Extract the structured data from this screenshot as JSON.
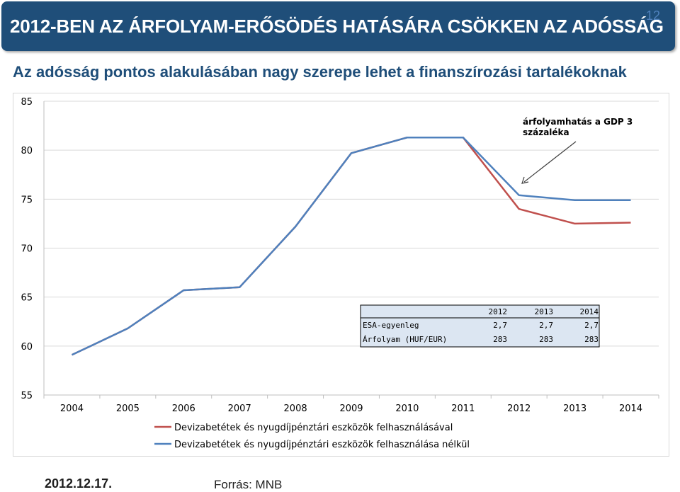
{
  "header": {
    "title": "2012-BEN AZ ÁRFOLYAM-ERŐSÖDÉS HATÁSÁRA CSÖKKEN AZ ADÓSSÁG",
    "page_number": "12"
  },
  "subtitle": "Az adósság pontos alakulásában nagy szerepe lehet a finanszírozási tartalékoknak",
  "footer": {
    "date": "2012.12.17.",
    "source": "Forrás: MNB"
  },
  "chart_data": {
    "type": "line",
    "categories": [
      "2004",
      "2005",
      "2006",
      "2007",
      "2008",
      "2009",
      "2010",
      "2011",
      "2012",
      "2013",
      "2014"
    ],
    "ylim": [
      55,
      85
    ],
    "yticks": [
      55,
      60,
      65,
      70,
      75,
      80,
      85
    ],
    "ytick_labels": [
      "55",
      "60",
      "65",
      "70",
      "75",
      "80",
      "85"
    ],
    "grid": true,
    "series": [
      {
        "name": "Devizabetétek és nyugdíjpénztári eszközök felhasználásával",
        "color": "#c0504d",
        "values": [
          59.1,
          61.8,
          65.7,
          66.0,
          72.2,
          79.7,
          81.3,
          81.3,
          74.0,
          72.5,
          72.6
        ]
      },
      {
        "name": "Devizabetétek és nyugdíjpénztári eszközök felhasználása nélkül",
        "color": "#4f81bd",
        "values": [
          59.1,
          61.8,
          65.7,
          66.0,
          72.2,
          79.7,
          81.3,
          81.3,
          75.4,
          74.9,
          74.9
        ]
      }
    ],
    "annotation": {
      "lines": [
        "árfolyamhatás a GDP 3",
        "százaléka"
      ]
    },
    "inset_table": {
      "headers": [
        "",
        "2012",
        "2013",
        "2014"
      ],
      "rows": [
        [
          "ESA-egyenleg",
          "2,7",
          "2,7",
          "2,7"
        ],
        [
          "Árfolyam (HUF/EUR)",
          "283",
          "283",
          "283"
        ]
      ]
    }
  }
}
